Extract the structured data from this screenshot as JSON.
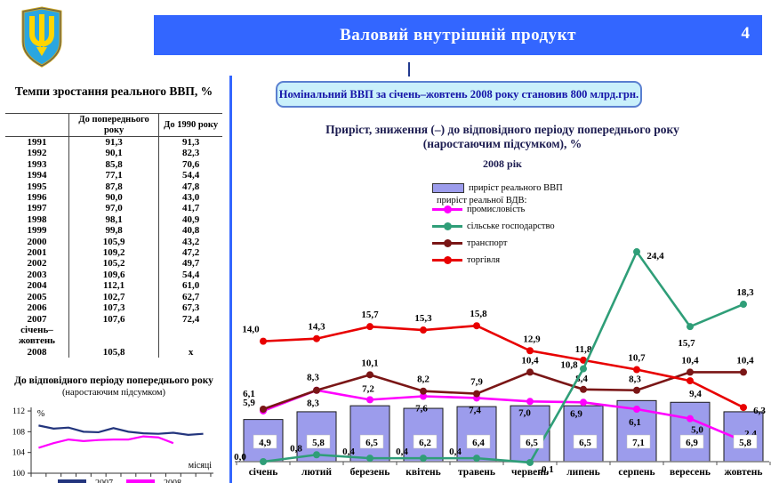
{
  "header": {
    "title": "Валовий внутрішній продукт",
    "page_number": "4"
  },
  "coat_of_arms": {
    "shield_color": "#2aa6e0",
    "trident_color": "#ffd500"
  },
  "left_panel": {
    "table": {
      "title": "Темпи зростання реального ВВП, %",
      "columns": [
        "До попереднього року",
        "До 1990 року"
      ],
      "rows": [
        [
          "1991",
          "91,3",
          "91,3"
        ],
        [
          "1992",
          "90,1",
          "82,3"
        ],
        [
          "1993",
          "85,8",
          "70,6"
        ],
        [
          "1994",
          "77,1",
          "54,4"
        ],
        [
          "1995",
          "87,8",
          "47,8"
        ],
        [
          "1996",
          "90,0",
          "43,0"
        ],
        [
          "1997",
          "97,0",
          "41,7"
        ],
        [
          "1998",
          "98,1",
          "40,9"
        ],
        [
          "1999",
          "99,8",
          "40,8"
        ],
        [
          "2000",
          "105,9",
          "43,2"
        ],
        [
          "2001",
          "109,2",
          "47,2"
        ],
        [
          "2002",
          "105,2",
          "49,7"
        ],
        [
          "2003",
          "109,6",
          "54,4"
        ],
        [
          "2004",
          "112,1",
          "61,0"
        ],
        [
          "2005",
          "102,7",
          "62,7"
        ],
        [
          "2006",
          "107,3",
          "67,3"
        ],
        [
          "2007",
          "107,6",
          "72,4"
        ],
        [
          [
            "січень–",
            "жовтень",
            "2008"
          ],
          "105,8",
          "x"
        ]
      ]
    }
  },
  "right_panel": {
    "info_box": "Номінальний ВВП за січень–жовтень 2008 року становив 800 млрд.грн."
  },
  "chart_data": [
    {
      "id": "main",
      "type": "bar",
      "title": "Приріст, зниження (–) до відповідного періоду попереднього року (наростаючим підсумком), %",
      "subtitle": "2008 рік",
      "categories": [
        "січень",
        "лютий",
        "березень",
        "квітень",
        "травень",
        "червень",
        "липень",
        "серпень",
        "вересень",
        "жовтень"
      ],
      "bar_series": {
        "name": "приріст реального ВВП",
        "color": "#9c9cec",
        "values": [
          4.9,
          5.8,
          6.5,
          6.2,
          6.4,
          6.5,
          6.5,
          7.1,
          6.9,
          5.8
        ]
      },
      "vdv_note": "приріст реальної ВДВ:",
      "series": [
        {
          "name": "промисловість",
          "color": "#ff00ff",
          "values": [
            5.9,
            8.3,
            7.2,
            7.6,
            7.4,
            7.0,
            6.9,
            6.1,
            5.0,
            2.4
          ]
        },
        {
          "name": "сільське господарство",
          "color": "#2f9e78",
          "values": [
            0.0,
            0.8,
            0.4,
            0.4,
            0.4,
            -0.1,
            10.8,
            24.4,
            15.7,
            18.3
          ]
        },
        {
          "name": "транспорт",
          "color": "#7a1616",
          "values": [
            6.1,
            8.3,
            10.1,
            8.2,
            7.9,
            10.4,
            8.4,
            8.3,
            10.4,
            10.4
          ]
        },
        {
          "name": "торгівля",
          "color": "#e80000",
          "values": [
            14.0,
            14.3,
            15.7,
            15.3,
            15.8,
            12.9,
            11.8,
            10.7,
            9.4,
            6.3
          ]
        }
      ],
      "legend_position": "top-center",
      "grid": false
    },
    {
      "id": "mini",
      "type": "line",
      "title": "До відповідного періоду попереднього року",
      "subtitle": "(наростаючим підсумком)",
      "ylabel": "%",
      "xlabel": "місяці",
      "ylim": [
        100,
        112
      ],
      "yticks": [
        100,
        104,
        108,
        112
      ],
      "series": [
        {
          "name": "2007",
          "color": "#23357d",
          "values": [
            109.2,
            108.6,
            108.8,
            108.0,
            107.9,
            108.7,
            108.0,
            107.7,
            107.6,
            107.8,
            107.4,
            107.6
          ]
        },
        {
          "name": "2008",
          "color": "#ff00ff",
          "values": [
            104.9,
            105.8,
            106.5,
            106.2,
            106.4,
            106.5,
            106.5,
            107.1,
            106.9,
            105.8
          ]
        }
      ],
      "legend_position": "bottom"
    }
  ]
}
